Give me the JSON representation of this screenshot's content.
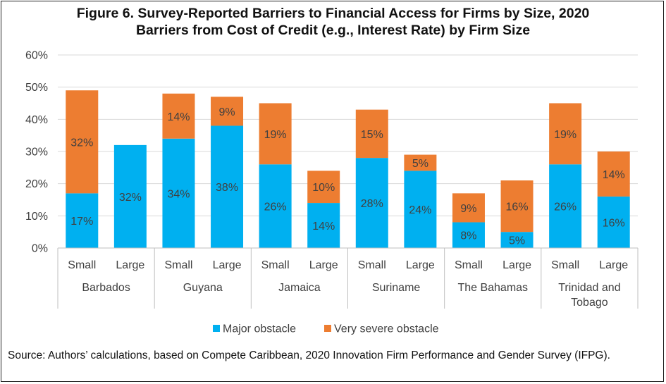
{
  "figure": {
    "title": "Figure 6. Survey-Reported Barriers to Financial Access for Firms by Size, 2020",
    "subtitle": "Barriers from Cost of Credit (e.g., Interest Rate) by Firm Size",
    "source": "Source: Authors’ calculations, based on Compete Caribbean, 2020 Innovation Firm Performance and Gender Survey (IFPG)."
  },
  "colors": {
    "major": "#00B0F0",
    "severe": "#ED7D31",
    "grid": "#D9D9D9",
    "axis": "#BFBFBF",
    "text": "#404040"
  },
  "chart_data": {
    "type": "bar",
    "stacked": true,
    "title": "Figure 6. Survey-Reported Barriers to Financial Access for Firms by Size, 2020",
    "subtitle": "Barriers from Cost of Credit (e.g., Interest Rate) by Firm Size",
    "groups": [
      "Barbados",
      "Guyana",
      "Jamaica",
      "Suriname",
      "The Bahamas",
      "Trinidad and Tobago"
    ],
    "categories": [
      "Small",
      "Large",
      "Small",
      "Large",
      "Small",
      "Large",
      "Small",
      "Large",
      "Small",
      "Large",
      "Small",
      "Large"
    ],
    "series": [
      {
        "name": "Major obstacle",
        "values": [
          17,
          32,
          34,
          38,
          26,
          14,
          28,
          24,
          8,
          5,
          26,
          16
        ]
      },
      {
        "name": "Very severe obstacle",
        "values": [
          32,
          0,
          14,
          9,
          19,
          10,
          15,
          5,
          9,
          16,
          19,
          14
        ]
      }
    ],
    "labels": {
      "major": [
        "17%",
        "32%",
        "34%",
        "38%",
        "26%",
        "14%",
        "28%",
        "24%",
        "8%",
        "5%",
        "26%",
        "16%"
      ],
      "severe": [
        "32%",
        "",
        "14%",
        "9%",
        "19%",
        "10%",
        "15%",
        "5%",
        "9%",
        "16%",
        "19%",
        "14%"
      ]
    },
    "yticks": [
      "0%",
      "10%",
      "20%",
      "30%",
      "40%",
      "50%",
      "60%"
    ],
    "ylim": [
      0,
      60
    ],
    "legend": [
      "Major obstacle",
      "Very severe obstacle"
    ],
    "legend_position": "bottom",
    "grid": true
  }
}
